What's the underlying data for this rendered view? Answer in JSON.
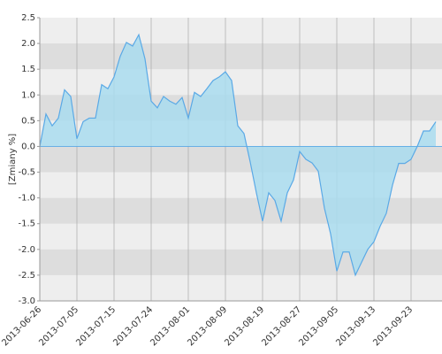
{
  "chart_data": {
    "type": "area",
    "y_label": "[Zmiany %]",
    "categories": [
      "2013-06-26",
      null,
      null,
      null,
      null,
      null,
      "2013-07-05",
      null,
      null,
      null,
      null,
      null,
      "2013-07-15",
      null,
      null,
      null,
      null,
      null,
      "2013-07-24",
      null,
      null,
      null,
      null,
      null,
      "2013-08-01",
      null,
      null,
      null,
      null,
      null,
      "2013-08-09",
      null,
      null,
      null,
      null,
      null,
      "2013-08-19",
      null,
      null,
      null,
      null,
      null,
      "2013-08-27",
      null,
      null,
      null,
      null,
      null,
      "2013-09-05",
      null,
      null,
      null,
      null,
      null,
      "2013-09-13",
      null,
      null,
      null,
      null,
      null,
      "2013-09-23",
      null,
      null,
      null,
      null
    ],
    "values": [
      0,
      0.63,
      0.4,
      0.55,
      1.1,
      0.97,
      0.15,
      0.48,
      0.55,
      0.55,
      1.2,
      1.12,
      1.35,
      1.75,
      2.02,
      1.95,
      2.17,
      1.7,
      0.88,
      0.75,
      0.97,
      0.88,
      0.82,
      0.95,
      0.55,
      1.05,
      0.97,
      1.12,
      1.28,
      1.35,
      1.45,
      1.28,
      0.4,
      0.25,
      -0.3,
      -0.9,
      -1.45,
      -0.9,
      -1.05,
      -1.45,
      -0.9,
      -0.65,
      -0.1,
      -0.25,
      -0.32,
      -0.48,
      -1.2,
      -1.7,
      -2.42,
      -2.05,
      -2.05,
      -2.5,
      -2.25,
      -2.0,
      -1.85,
      -1.55,
      -1.3,
      -0.75,
      -0.33,
      -0.33,
      -0.25,
      0.0,
      0.3,
      0.3,
      0.48
    ],
    "color": "#5aa9e6",
    "fill": "#a9dcef",
    "ylim": [
      -3,
      2.5
    ],
    "yticks": [
      2.5,
      {
        "value": 2,
        "label": "2.0"
      },
      1.5,
      {
        "value": 1,
        "label": "1.0"
      },
      0.5,
      {
        "value": 0,
        "label": "0.0"
      },
      -0.5,
      {
        "value": -1,
        "label": "-1.0"
      },
      -1.5,
      {
        "value": -2,
        "label": "-2.0"
      },
      -2.5,
      {
        "value": -3,
        "label": "-3.0"
      }
    ],
    "grid": true
  }
}
